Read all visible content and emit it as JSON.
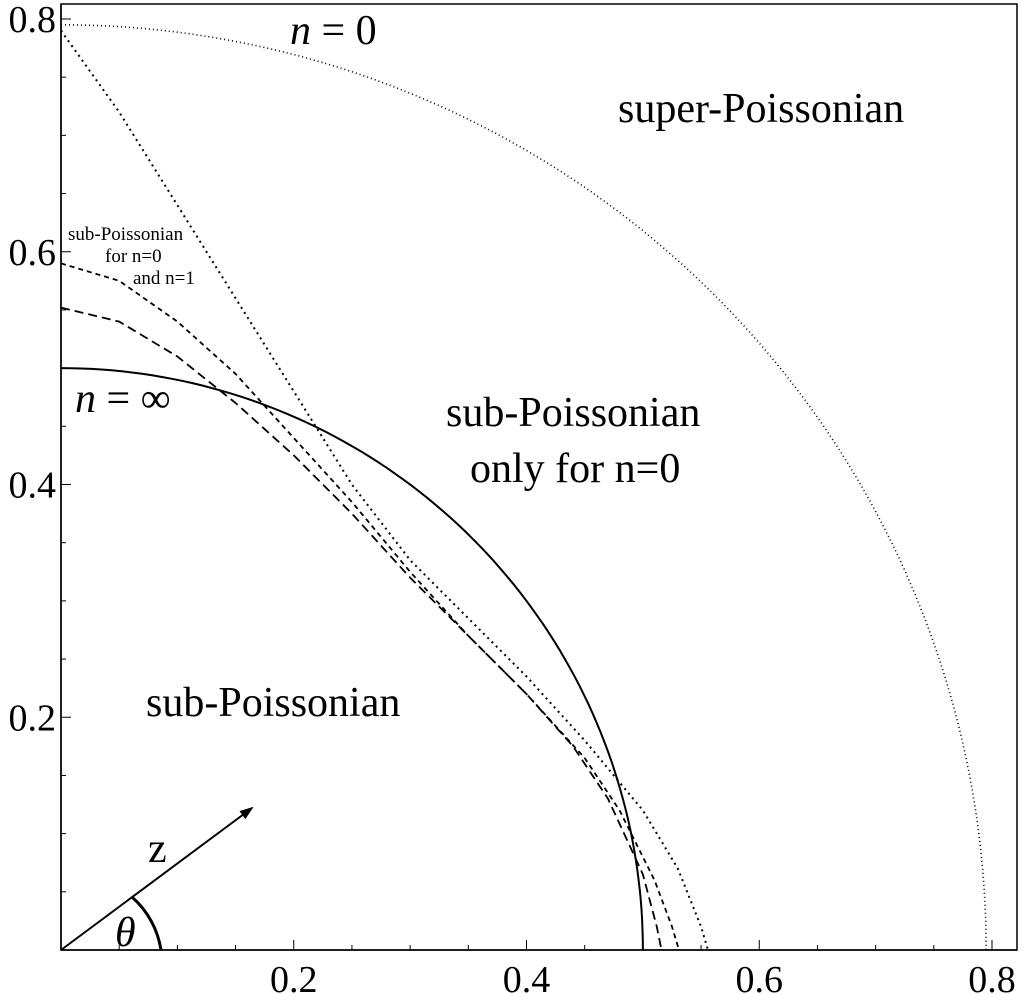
{
  "chart_data": {
    "type": "line",
    "title": "",
    "xlabel": "",
    "ylabel": "",
    "xlim": [
      0,
      0.82
    ],
    "ylim": [
      0,
      0.81
    ],
    "x_ticks": [
      "0.2",
      "0.4",
      "0.6",
      "0.8"
    ],
    "y_ticks": [
      "0.2",
      "0.4",
      "0.6",
      "0.8"
    ],
    "x_tick_values": [
      0.2,
      0.4,
      0.6,
      0.8
    ],
    "y_tick_values": [
      0.2,
      0.4,
      0.6,
      0.8
    ],
    "grid": false,
    "series": [
      {
        "name": "n = 0",
        "style": "dotted-fine",
        "shape": "quarter-circle",
        "r": 0.795
      },
      {
        "name": "",
        "style": "dotted",
        "points": [
          [
            0,
            0.79
          ],
          [
            0.05,
            0.72
          ],
          [
            0.1,
            0.64
          ],
          [
            0.15,
            0.56
          ],
          [
            0.2,
            0.48
          ],
          [
            0.25,
            0.4
          ],
          [
            0.3,
            0.335
          ],
          [
            0.35,
            0.285
          ],
          [
            0.4,
            0.235
          ],
          [
            0.45,
            0.18
          ],
          [
            0.5,
            0.12
          ],
          [
            0.53,
            0.07
          ],
          [
            0.55,
            0.02
          ],
          [
            0.556,
            0
          ]
        ]
      },
      {
        "name": "",
        "style": "dashed-short",
        "points": [
          [
            0,
            0.59
          ],
          [
            0.05,
            0.575
          ],
          [
            0.1,
            0.54
          ],
          [
            0.15,
            0.495
          ],
          [
            0.2,
            0.44
          ],
          [
            0.25,
            0.385
          ],
          [
            0.3,
            0.325
          ],
          [
            0.35,
            0.27
          ],
          [
            0.4,
            0.22
          ],
          [
            0.45,
            0.165
          ],
          [
            0.48,
            0.12
          ],
          [
            0.51,
            0.06
          ],
          [
            0.525,
            0.02
          ],
          [
            0.531,
            0
          ]
        ]
      },
      {
        "name": "",
        "style": "dashed",
        "points": [
          [
            0,
            0.552
          ],
          [
            0.05,
            0.54
          ],
          [
            0.1,
            0.51
          ],
          [
            0.15,
            0.47
          ],
          [
            0.2,
            0.425
          ],
          [
            0.25,
            0.375
          ],
          [
            0.3,
            0.32
          ],
          [
            0.35,
            0.27
          ],
          [
            0.4,
            0.22
          ],
          [
            0.44,
            0.175
          ],
          [
            0.47,
            0.13
          ],
          [
            0.5,
            0.065
          ],
          [
            0.512,
            0.02
          ],
          [
            0.516,
            0
          ]
        ]
      },
      {
        "name": "n = ∞",
        "style": "solid",
        "shape": "quarter-circle",
        "r": 0.5
      }
    ],
    "annotations": {
      "n0": {
        "var": "n",
        "eq": " = 0"
      },
      "ninf": {
        "var": "n",
        "eq": " = ∞"
      },
      "super": "super-Poissonian",
      "sub_only_1": "sub-Poissonian",
      "sub_only_2": "only for n=0",
      "sub": "sub-Poissonian",
      "note_1": "sub-Poissonian",
      "note_2": "for n=0",
      "note_3": "and n=1",
      "vector": "z",
      "angle": "θ"
    }
  }
}
